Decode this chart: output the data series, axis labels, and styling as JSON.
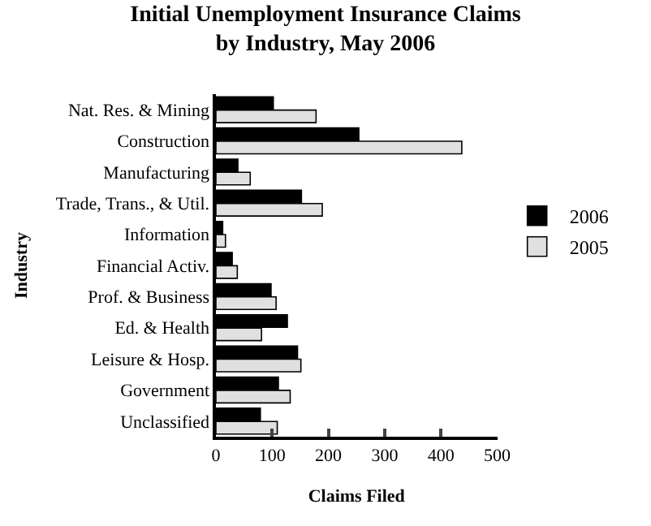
{
  "chart_data": {
    "type": "bar",
    "orientation": "horizontal",
    "title": "Initial Unemployment Insurance Claims\nby Industry, May 2006",
    "xlabel": "Claims Filed",
    "ylabel": "Industry",
    "categories": [
      "Nat. Res. & Mining",
      "Construction",
      "Manufacturing",
      "Trade, Trans., & Util.",
      "Information",
      "Financial Activ.",
      "Prof. & Business",
      "Ed. & Health",
      "Leisure & Hosp.",
      "Government",
      "Unclassified"
    ],
    "series": [
      {
        "name": "2006",
        "color": "#000000",
        "values": [
          102,
          254,
          39,
          152,
          12,
          29,
          98,
          127,
          145,
          111,
          79
        ]
      },
      {
        "name": "2005",
        "color": "#e0e0e0",
        "values": [
          178,
          437,
          61,
          189,
          17,
          38,
          107,
          81,
          151,
          132,
          109
        ]
      }
    ],
    "xlim": [
      0,
      500
    ],
    "xticks": [
      0,
      100,
      200,
      300,
      400,
      500
    ],
    "legend": "right"
  }
}
